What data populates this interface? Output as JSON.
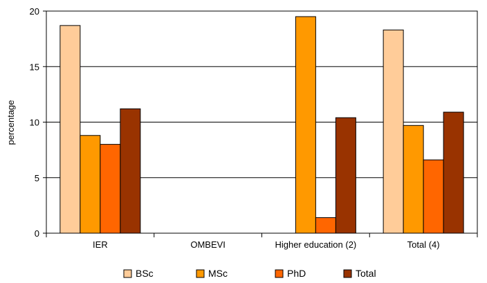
{
  "chart_data": {
    "type": "bar",
    "categories": [
      "IER",
      "OMBEVI",
      "Higher education (2)",
      "Total (4)"
    ],
    "series": [
      {
        "name": "BSc",
        "color": "#ffcc99",
        "values": [
          18.7,
          0,
          0,
          18.3
        ]
      },
      {
        "name": "MSc",
        "color": "#ff9900",
        "values": [
          8.8,
          0,
          19.5,
          9.7
        ]
      },
      {
        "name": "PhD",
        "color": "#ff6600",
        "values": [
          8.0,
          0,
          1.4,
          6.6
        ]
      },
      {
        "name": "Total",
        "color": "#993300",
        "values": [
          11.2,
          0,
          10.4,
          10.9
        ]
      }
    ],
    "xlabel": "",
    "ylabel": "percentage",
    "ylim": [
      0,
      20
    ],
    "yticks": [
      0,
      5,
      10,
      15,
      20
    ],
    "grid": true,
    "legend": "bottom"
  }
}
